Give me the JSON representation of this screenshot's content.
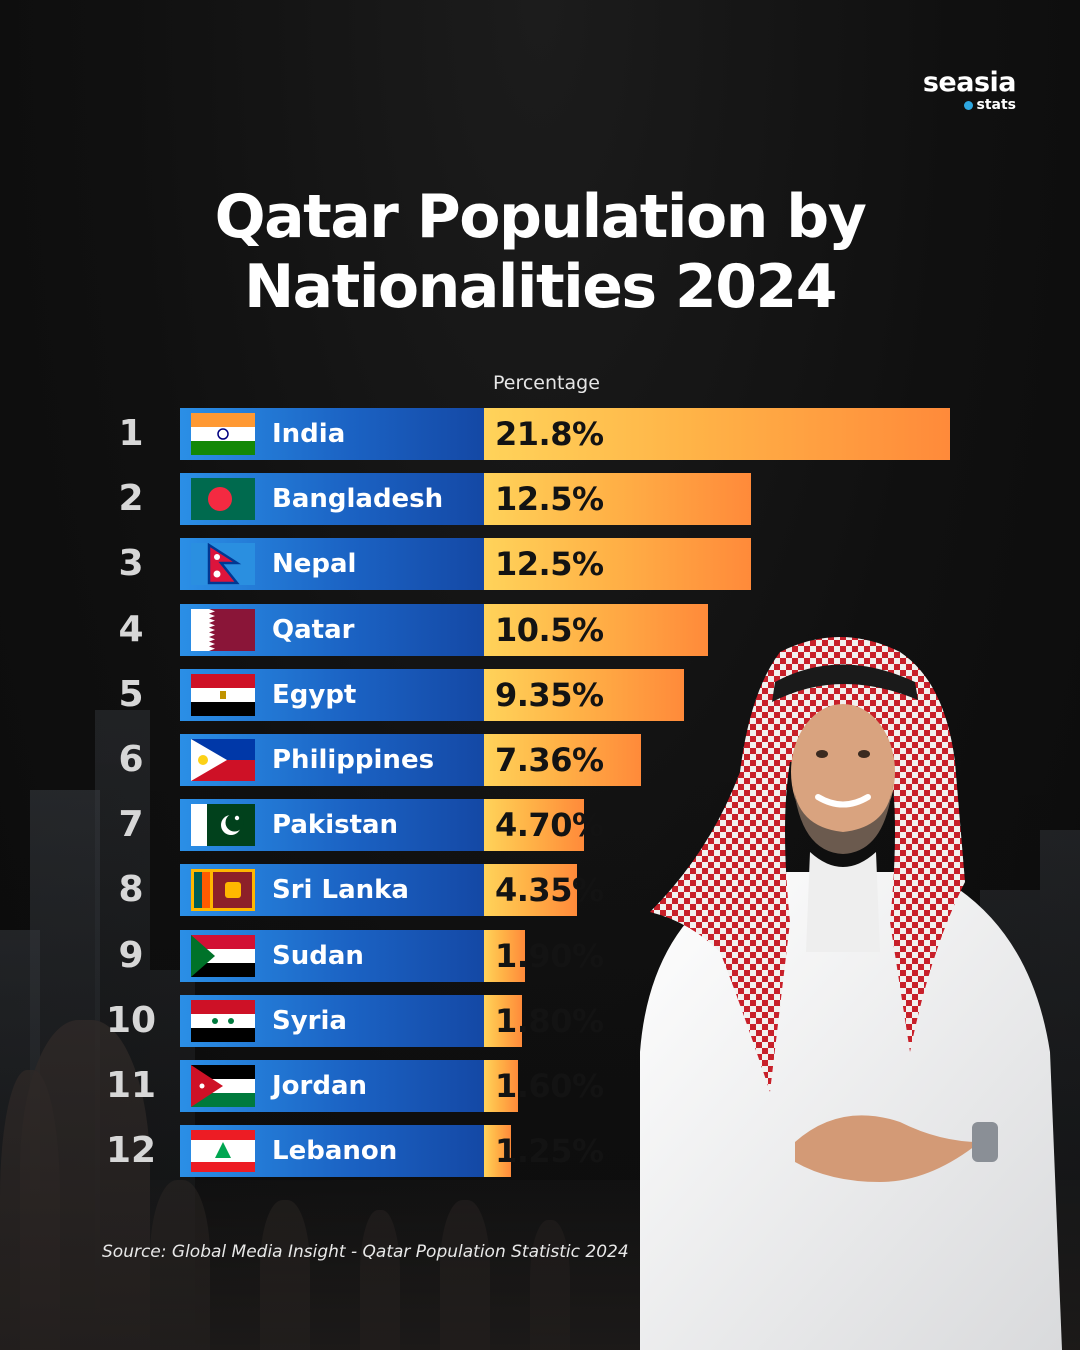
{
  "brand": {
    "name": "seasia",
    "sub": "stats"
  },
  "title_line1": "Qatar Population by",
  "title_line2": "Nationalities 2024",
  "column_header": "Percentage",
  "source": "Source: Global Media Insight - Qatar Population Statistic 2024",
  "chart_data": {
    "type": "bar",
    "orientation": "horizontal",
    "title": "Qatar Population by Nationalities 2024",
    "xlabel": "Percentage",
    "unit": "%",
    "ranks": [
      "1",
      "2",
      "3",
      "4",
      "5",
      "6",
      "7",
      "8",
      "9",
      "10",
      "11",
      "12"
    ],
    "categories": [
      "India",
      "Bangladesh",
      "Nepal",
      "Qatar",
      "Egypt",
      "Philippines",
      "Pakistan",
      "Sri Lanka",
      "Sudan",
      "Syria",
      "Jordan",
      "Lebanon"
    ],
    "values": [
      21.8,
      12.5,
      12.5,
      10.5,
      9.35,
      7.36,
      4.7,
      4.35,
      1.9,
      1.8,
      1.6,
      1.25
    ],
    "labels": [
      "21.8%",
      "12.5%",
      "12.5%",
      "10.5%",
      "9.35%",
      "7.36%",
      "4.70%",
      "4.35%",
      "1.90%",
      "1.80%",
      "1.60%",
      "1.25%"
    ],
    "flags": [
      "india-flag-icon",
      "bangladesh-flag-icon",
      "nepal-flag-icon",
      "qatar-flag-icon",
      "egypt-flag-icon",
      "philippines-flag-icon",
      "pakistan-flag-icon",
      "sri-lanka-flag-icon",
      "sudan-flag-icon",
      "syria-flag-icon",
      "jordan-flag-icon",
      "lebanon-flag-icon"
    ],
    "colors": {
      "name_bar": "#1b63c4",
      "value_bar_start": "#ffd35a",
      "value_bar_end": "#ff8a3a"
    }
  }
}
